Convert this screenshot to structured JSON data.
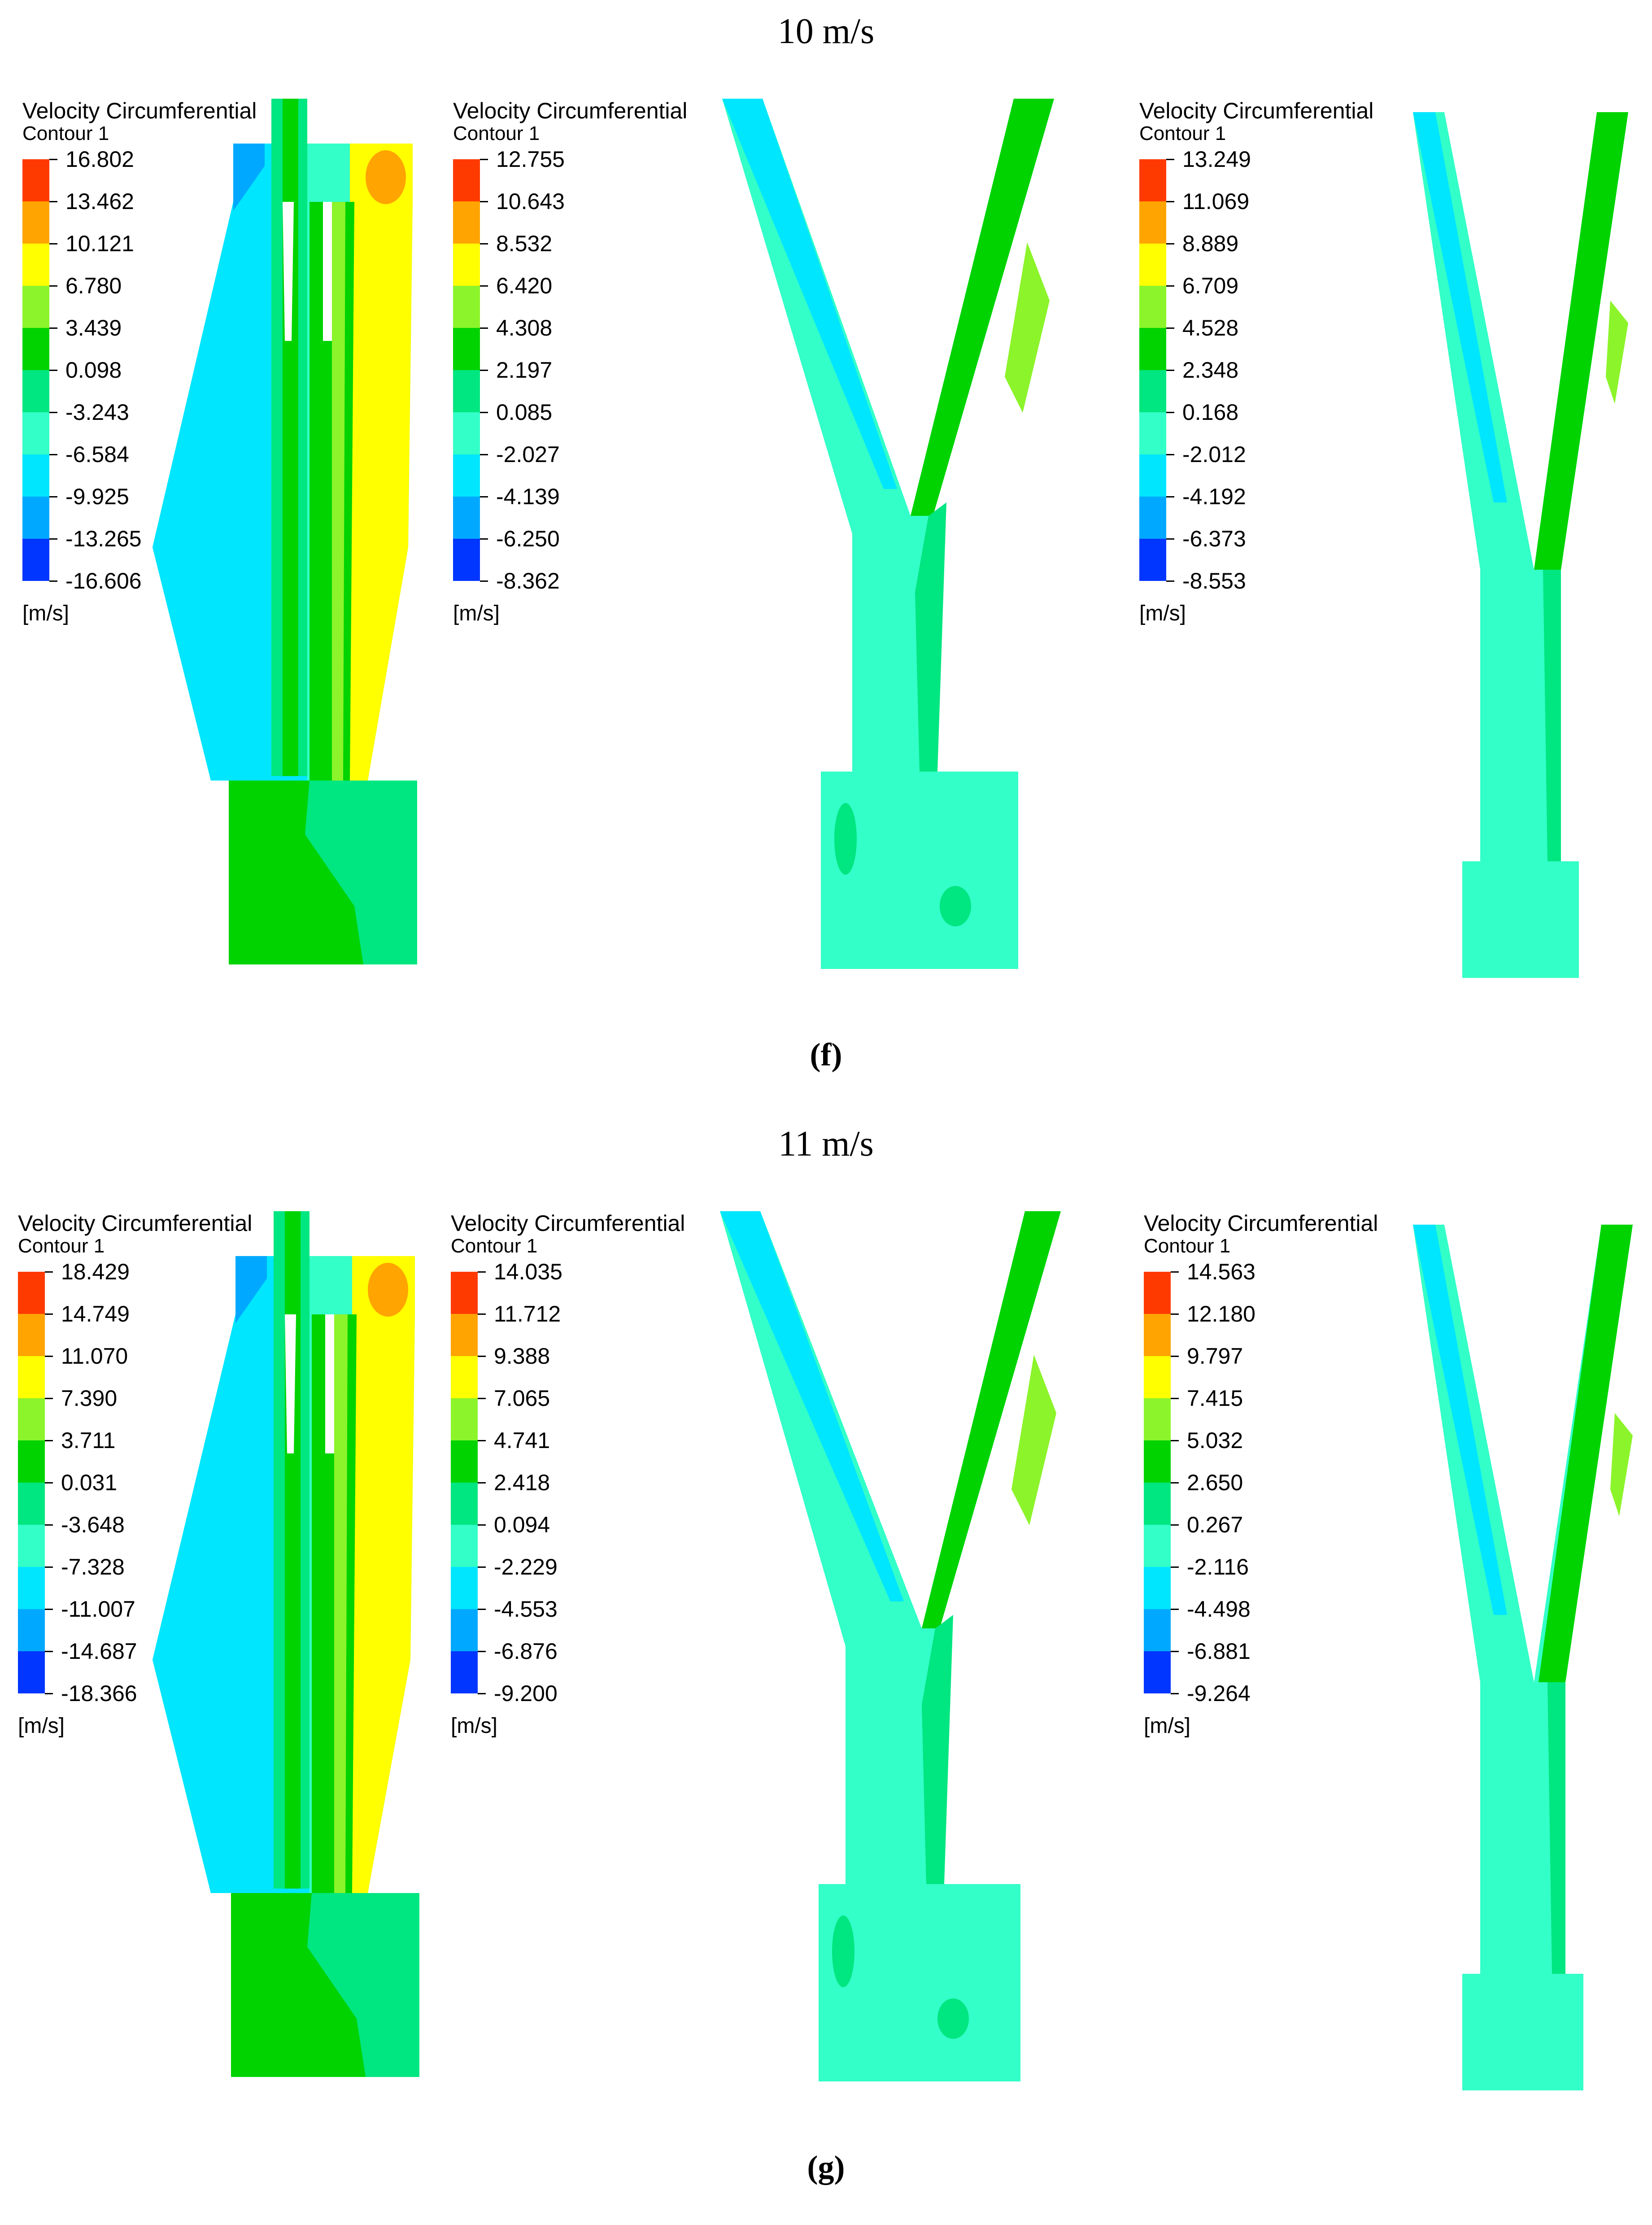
{
  "legend_colors": [
    "#ff3a00",
    "#ffa400",
    "#ffff00",
    "#8cf42a",
    "#00d300",
    "#00e680",
    "#33ffc8",
    "#00e6ff",
    "#00a9ff",
    "#0036ff"
  ],
  "blocks": [
    {
      "title": "10 m/s",
      "label": "(f)",
      "panels": [
        {
          "geometry": "cyclone",
          "legend": {
            "title": "Velocity Circumferential",
            "subtitle": "Contour 1",
            "unit": "[m/s]",
            "values": [
              "16.802",
              "13.462",
              "10.121",
              "6.780",
              "3.439",
              "0.098",
              "-3.243",
              "-6.584",
              "-9.925",
              "-13.265",
              "-16.606"
            ]
          }
        },
        {
          "geometry": "wide-y",
          "legend": {
            "title": "Velocity Circumferential",
            "subtitle": "Contour 1",
            "unit": "[m/s]",
            "values": [
              "12.755",
              "10.643",
              "8.532",
              "6.420",
              "4.308",
              "2.197",
              "0.085",
              "-2.027",
              "-4.139",
              "-6.250",
              "-8.362"
            ]
          }
        },
        {
          "geometry": "narrow-y",
          "legend": {
            "title": "Velocity Circumferential",
            "subtitle": "Contour 1",
            "unit": "[m/s]",
            "values": [
              "13.249",
              "11.069",
              "8.889",
              "6.709",
              "4.528",
              "2.348",
              "0.168",
              "-2.012",
              "-4.192",
              "-6.373",
              "-8.553"
            ]
          }
        }
      ]
    },
    {
      "title": "11 m/s",
      "label": "(g)",
      "panels": [
        {
          "geometry": "cyclone",
          "legend": {
            "title": "Velocity Circumferential",
            "subtitle": "Contour 1",
            "unit": "[m/s]",
            "values": [
              "18.429",
              "14.749",
              "11.070",
              "7.390",
              "3.711",
              "0.031",
              "-3.648",
              "-7.328",
              "-11.007",
              "-14.687",
              "-18.366"
            ]
          }
        },
        {
          "geometry": "wide-y",
          "legend": {
            "title": "Velocity Circumferential",
            "subtitle": "Contour 1",
            "unit": "[m/s]",
            "values": [
              "14.035",
              "11.712",
              "9.388",
              "7.065",
              "4.741",
              "2.418",
              "0.094",
              "-2.229",
              "-4.553",
              "-6.876",
              "-9.200"
            ]
          }
        },
        {
          "geometry": "narrow-y",
          "legend": {
            "title": "Velocity Circumferential",
            "subtitle": "Contour 1",
            "unit": "[m/s]",
            "values": [
              "14.563",
              "12.180",
              "9.797",
              "7.415",
              "5.032",
              "2.650",
              "0.267",
              "-2.116",
              "-4.498",
              "-6.881",
              "-9.264"
            ]
          }
        }
      ]
    }
  ]
}
